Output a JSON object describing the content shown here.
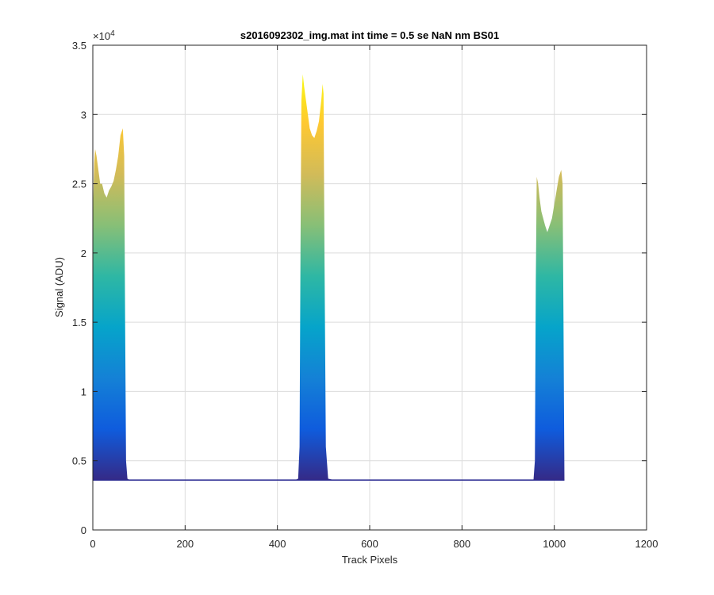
{
  "chart_data": {
    "type": "area",
    "title": "s2016092302_img.mat int time = 0.5 se  NaN nm BS01",
    "xlabel": "Track Pixels",
    "ylabel": "Signal (ADU)",
    "xlim": [
      0,
      1200
    ],
    "ylim": [
      0,
      35000
    ],
    "xticks": [
      0,
      200,
      400,
      600,
      800,
      1000,
      1200
    ],
    "xtick_labels": [
      "0",
      "200",
      "400",
      "600",
      "800",
      "1000",
      "1200"
    ],
    "yticks": [
      0,
      5000,
      10000,
      15000,
      20000,
      25000,
      30000,
      35000
    ],
    "ytick_labels": [
      "0",
      "0.5",
      "1",
      "1.5",
      "2",
      "2.5",
      "3",
      "3.5"
    ],
    "y_exponent_label": "×10",
    "y_exponent_power": "4",
    "grid": true,
    "baseline": 3600,
    "colormap": [
      "#352a87",
      "#0f5cdd",
      "#1481d6",
      "#06a4ca",
      "#2eb7a4",
      "#87bf77",
      "#d1bb59",
      "#fec832",
      "#f9fb0e"
    ],
    "series": [
      {
        "x": [
          0,
          1,
          3,
          5,
          8,
          12,
          16,
          20,
          25,
          30,
          35,
          40,
          45,
          50,
          55,
          60,
          65,
          68,
          70,
          72,
          75,
          80,
          90,
          100,
          200,
          300,
          400,
          440,
          445,
          448,
          450,
          452,
          455,
          458,
          462,
          466,
          470,
          475,
          480,
          485,
          490,
          495,
          498,
          500,
          502,
          505,
          510,
          520,
          600,
          700,
          800,
          900,
          955,
          958,
          960,
          962,
          965,
          968,
          972,
          976,
          980,
          985,
          990,
          995,
          1000,
          1005,
          1010,
          1015,
          1018,
          1020,
          1022
        ],
        "y": [
          17000,
          24000,
          26500,
          27500,
          27000,
          26000,
          25000,
          25000,
          24300,
          24000,
          24500,
          24800,
          25200,
          26000,
          27000,
          28500,
          29000,
          27000,
          15000,
          5000,
          3700,
          3600,
          3600,
          3580,
          3580,
          3580,
          3600,
          3620,
          3700,
          6000,
          20000,
          31000,
          32900,
          32000,
          31000,
          30000,
          29000,
          28500,
          28300,
          28800,
          29500,
          31000,
          32200,
          31500,
          20000,
          6000,
          3700,
          3620,
          3580,
          3580,
          3580,
          3600,
          3620,
          5000,
          18000,
          25500,
          25000,
          24000,
          23000,
          22500,
          22000,
          21500,
          22000,
          22500,
          23500,
          24500,
          25500,
          26000,
          25000,
          15000,
          3700
        ]
      }
    ]
  }
}
